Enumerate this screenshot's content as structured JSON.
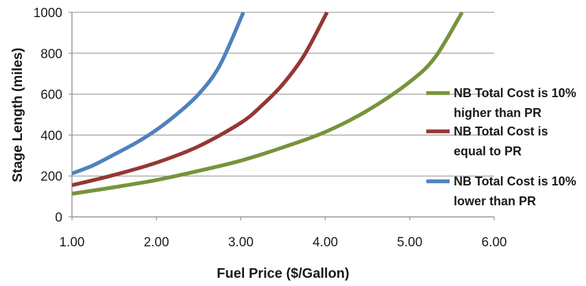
{
  "chart_data": {
    "type": "line",
    "title": "",
    "xlabel": "Fuel Price ($/Gallon)",
    "ylabel": "Stage Length (miles)",
    "xlim": [
      1.0,
      6.0
    ],
    "ylim": [
      0,
      1000
    ],
    "x_ticks": [
      "1.00",
      "2.00",
      "3.00",
      "4.00",
      "5.00",
      "6.00"
    ],
    "y_ticks": [
      "0",
      "200",
      "400",
      "600",
      "800",
      "1000"
    ],
    "grid": "horizontal",
    "legend_position": "right",
    "series": [
      {
        "name": "NB Total Cost is 10% higher than PR",
        "legend_lines": [
          "NB Total Cost is 10%",
          "higher than PR"
        ],
        "color": "#77933c",
        "x": [
          1.0,
          1.5,
          2.0,
          2.5,
          3.0,
          3.5,
          4.0,
          4.5,
          5.0,
          5.3,
          5.62
        ],
        "y": [
          113,
          145,
          180,
          225,
          275,
          340,
          415,
          520,
          660,
          780,
          1000
        ]
      },
      {
        "name": "NB Total Cost is equal to PR",
        "legend_lines": [
          "NB Total Cost is",
          "equal to PR"
        ],
        "color": "#953735",
        "x": [
          1.0,
          1.5,
          2.0,
          2.5,
          3.0,
          3.25,
          3.5,
          3.75,
          4.02
        ],
        "y": [
          155,
          205,
          265,
          345,
          460,
          545,
          650,
          790,
          1000
        ]
      },
      {
        "name": "NB Total Cost is 10% lower than PR",
        "legend_lines": [
          "NB Total Cost is 10%",
          "lower than PR"
        ],
        "color": "#4f81bd",
        "x": [
          1.0,
          1.25,
          1.5,
          1.75,
          2.0,
          2.25,
          2.5,
          2.75,
          3.03
        ],
        "y": [
          212,
          252,
          305,
          360,
          425,
          505,
          600,
          740,
          1000
        ]
      }
    ]
  }
}
